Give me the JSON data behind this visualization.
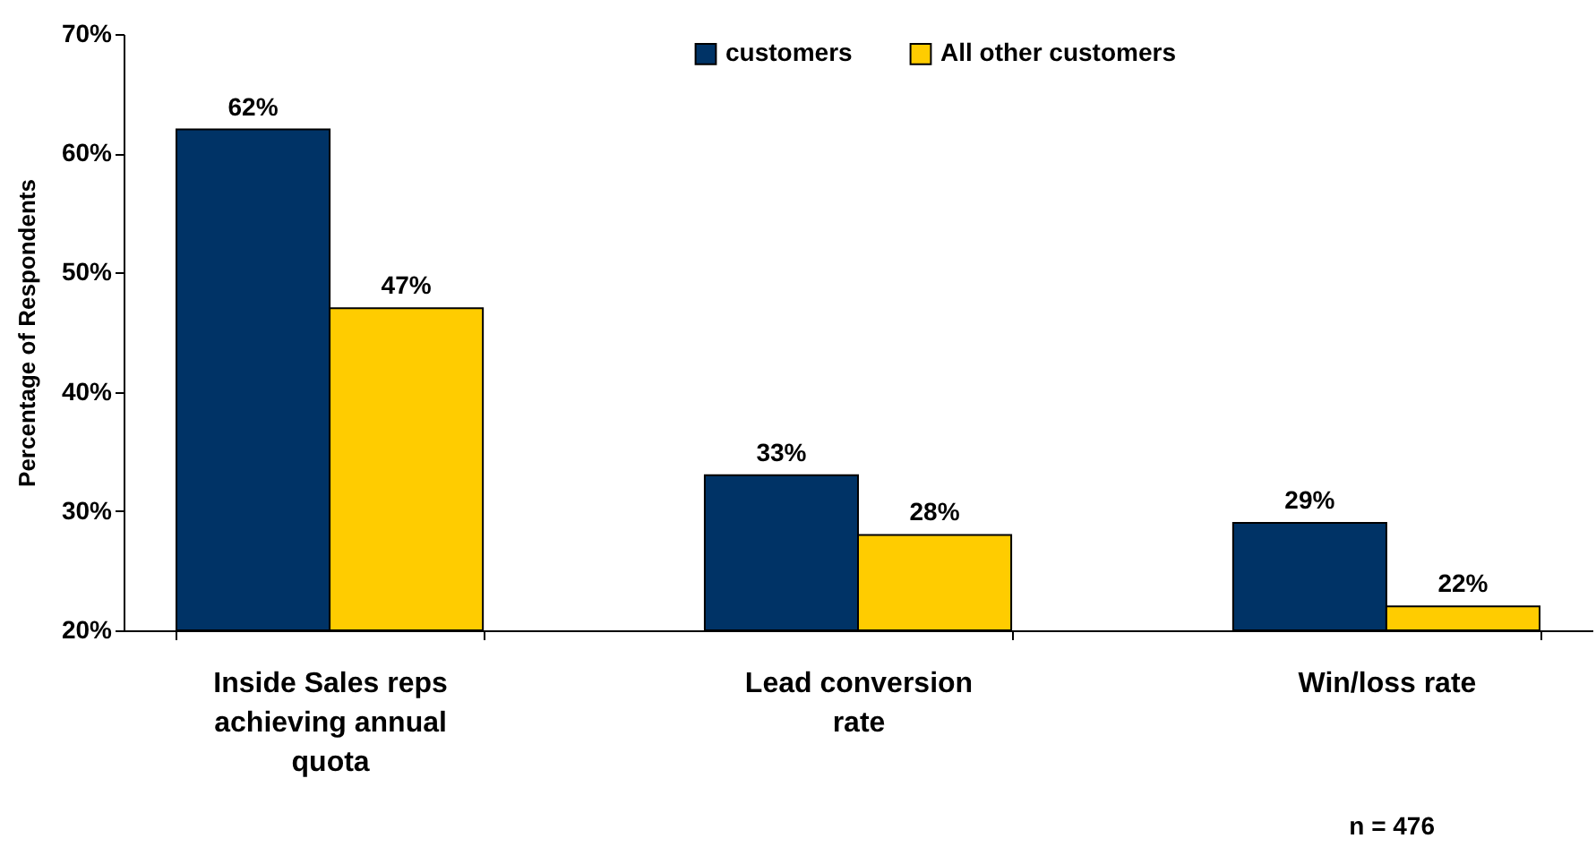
{
  "chart_data": {
    "type": "bar",
    "ylabel": "Percentage of Respondents",
    "categories": [
      "Inside Sales reps achieving annual quota",
      "Lead conversion rate",
      "Win/loss rate"
    ],
    "series": [
      {
        "name": "customers",
        "color": "#003366",
        "values": [
          62,
          33,
          29
        ],
        "value_labels": [
          "62%",
          "33%",
          "29%"
        ]
      },
      {
        "name": "All other customers",
        "color": "#ffcc00",
        "values": [
          47,
          28,
          22
        ],
        "value_labels": [
          "47%",
          "28%",
          "22%"
        ]
      }
    ],
    "ylim": [
      20,
      70
    ],
    "yticks": [
      {
        "value": 20,
        "label": "20%"
      },
      {
        "value": 30,
        "label": "30%"
      },
      {
        "value": 40,
        "label": "40%"
      },
      {
        "value": 50,
        "label": "50%"
      },
      {
        "value": 60,
        "label": "60%"
      },
      {
        "value": 70,
        "label": "70%"
      }
    ],
    "grid": false,
    "legend": "top right",
    "annotations": [
      "n = 476"
    ]
  }
}
